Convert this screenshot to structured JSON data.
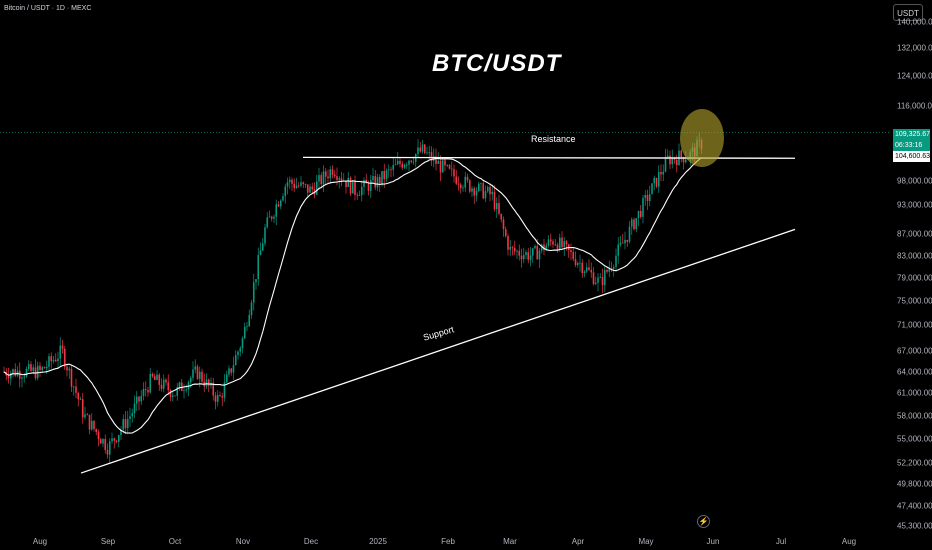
{
  "header": {
    "symbol_line": "Bitcoin / USDT · 1D · MEXC",
    "currency": "USDT"
  },
  "chart_data": {
    "type": "candlestick",
    "title": "BTC/USDT",
    "x_axis": {
      "ticks": [
        "Aug",
        "Sep",
        "Oct",
        "Nov",
        "Dec",
        "2025",
        "Feb",
        "Mar",
        "Apr",
        "May",
        "Jun",
        "Jul",
        "Aug"
      ]
    },
    "y_axis": {
      "scale": "log",
      "ticks": [
        "140,000.00",
        "132,000.00",
        "124,000.00",
        "116,000.00",
        "98,000.00",
        "93,000.00",
        "87,000.00",
        "83,000.00",
        "79,000.00",
        "75,000.00",
        "71,000.00",
        "67,000.00",
        "64,000.00",
        "61,000.00",
        "58,000.00",
        "55,000.00",
        "52,200.00",
        "49,800.00",
        "47,400.00",
        "45,300.00"
      ],
      "tick_values": [
        140000,
        132000,
        124000,
        116000,
        98000,
        93000,
        87000,
        83000,
        79000,
        75000,
        71000,
        67000,
        64000,
        61000,
        58000,
        55000,
        52200,
        49800,
        47400,
        45300
      ]
    },
    "last_price": "109,325.67",
    "countdown": "06:33:16",
    "sma_value": "104,600.63",
    "price_path": [
      {
        "x": "Aug",
        "y": 64000
      },
      {
        "x": "Aug",
        "y": 67000
      },
      {
        "x": "Aug",
        "y": 58000
      },
      {
        "x": "Sep",
        "y": 54000
      },
      {
        "x": "Sep",
        "y": 58000
      },
      {
        "x": "Sep",
        "y": 63000
      },
      {
        "x": "Oct",
        "y": 61000
      },
      {
        "x": "Oct",
        "y": 64000
      },
      {
        "x": "Oct",
        "y": 60000
      },
      {
        "x": "Nov",
        "y": 69000
      },
      {
        "x": "Nov",
        "y": 88000
      },
      {
        "x": "Nov",
        "y": 98000
      },
      {
        "x": "Dec",
        "y": 96000
      },
      {
        "x": "Dec",
        "y": 101000
      },
      {
        "x": "Dec",
        "y": 96000
      },
      {
        "x": "2025",
        "y": 98000
      },
      {
        "x": "2025",
        "y": 102000
      },
      {
        "x": "2025",
        "y": 105000
      },
      {
        "x": "Feb",
        "y": 100000
      },
      {
        "x": "Feb",
        "y": 97000
      },
      {
        "x": "Feb",
        "y": 95000
      },
      {
        "x": "Mar",
        "y": 84000
      },
      {
        "x": "Mar",
        "y": 83000
      },
      {
        "x": "Mar",
        "y": 86000
      },
      {
        "x": "Apr",
        "y": 82000
      },
      {
        "x": "Apr",
        "y": 78000
      },
      {
        "x": "Apr",
        "y": 85000
      },
      {
        "x": "May",
        "y": 94000
      },
      {
        "x": "May",
        "y": 103000
      },
      {
        "x": "May",
        "y": 104000
      },
      {
        "x": "Jun",
        "y": 109325
      }
    ],
    "lines": [
      {
        "label": "Resistance",
        "from": {
          "x": "Dec",
          "y": 103400
        },
        "to": {
          "x": "Jun",
          "y": 103200
        }
      },
      {
        "label": "Support",
        "from": {
          "x": "Aug",
          "y": 51000
        },
        "to": {
          "x": "Jul",
          "y": 88000
        }
      }
    ],
    "colors": {
      "up": "#089981",
      "down": "#f23645",
      "sma": "#ffffff",
      "highlight": "#b8a52c",
      "background": "#000000"
    }
  }
}
